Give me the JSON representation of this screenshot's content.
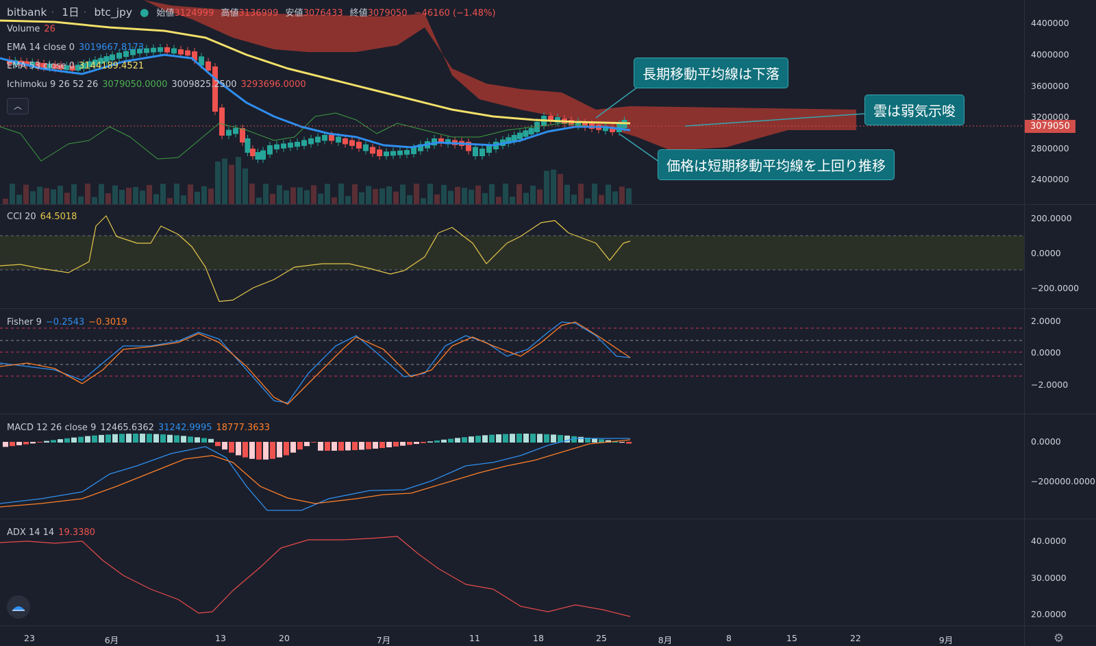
{
  "header": {
    "exchange": "bitbank",
    "interval": "1日",
    "symbol": "btc_jpy",
    "open_label": "始値",
    "open": "3124999",
    "high_label": "高値",
    "high": "3136999",
    "low_label": "安値",
    "low": "3076433",
    "close_label": "終値",
    "close": "3079050",
    "change": "−46160 (−1.48%)"
  },
  "legends": {
    "volume": {
      "name": "Volume",
      "value": "26"
    },
    "ema14": {
      "name": "EMA 14 close 0",
      "value": "3019667.8173"
    },
    "ema53": {
      "name": "EMA 53 close 0",
      "value": "3144189.4521"
    },
    "ichimoku": {
      "name": "Ichimoku 9 26 52 26",
      "v1": "3079050.0000",
      "v2": "3009825.2500",
      "v3": "3293696.0000"
    },
    "cci": {
      "name": "CCI 20",
      "value": "64.5018"
    },
    "fisher": {
      "name": "Fisher 9",
      "v1": "−0.2543",
      "v2": "−0.3019"
    },
    "macd": {
      "name": "MACD 12 26 close 9",
      "v1": "12465.6362",
      "v2": "31242.9995",
      "v3": "18777.3633"
    },
    "adx": {
      "name": "ADX 14 14",
      "value": "19.3380"
    }
  },
  "price_axis": [
    "4400000",
    "4000000",
    "3600000",
    "3200000",
    "2800000",
    "2400000"
  ],
  "last_price": "3079050",
  "cci_axis": [
    "200.0000",
    "0.0000",
    "−200.0000"
  ],
  "fisher_axis": [
    "2.0000",
    "0.0000",
    "−2.0000"
  ],
  "macd_axis": [
    "0.0000",
    "−200000.0000"
  ],
  "adx_axis": [
    "40.0000",
    "30.0000",
    "20.0000"
  ],
  "time_axis": [
    "23",
    "6月",
    "13",
    "20",
    "7月",
    "11",
    "18",
    "25",
    "8月",
    "8",
    "15",
    "22",
    "9月"
  ],
  "annotations": {
    "long_ma": "長期移動平均線は下落",
    "cloud": "雲は弱気示唆",
    "short_ma": "価格は短期移動平均線を上回り推移"
  },
  "icons": {
    "collapse": "chevron-up-icon",
    "logo": "tradingview-logo-icon",
    "settings": "gear-icon"
  },
  "colors": {
    "up": "#26a69a",
    "down": "#ef5350",
    "ema14": "#2f8ff0",
    "ema53": "#f3e06a",
    "cloud": "#b23a32"
  }
}
